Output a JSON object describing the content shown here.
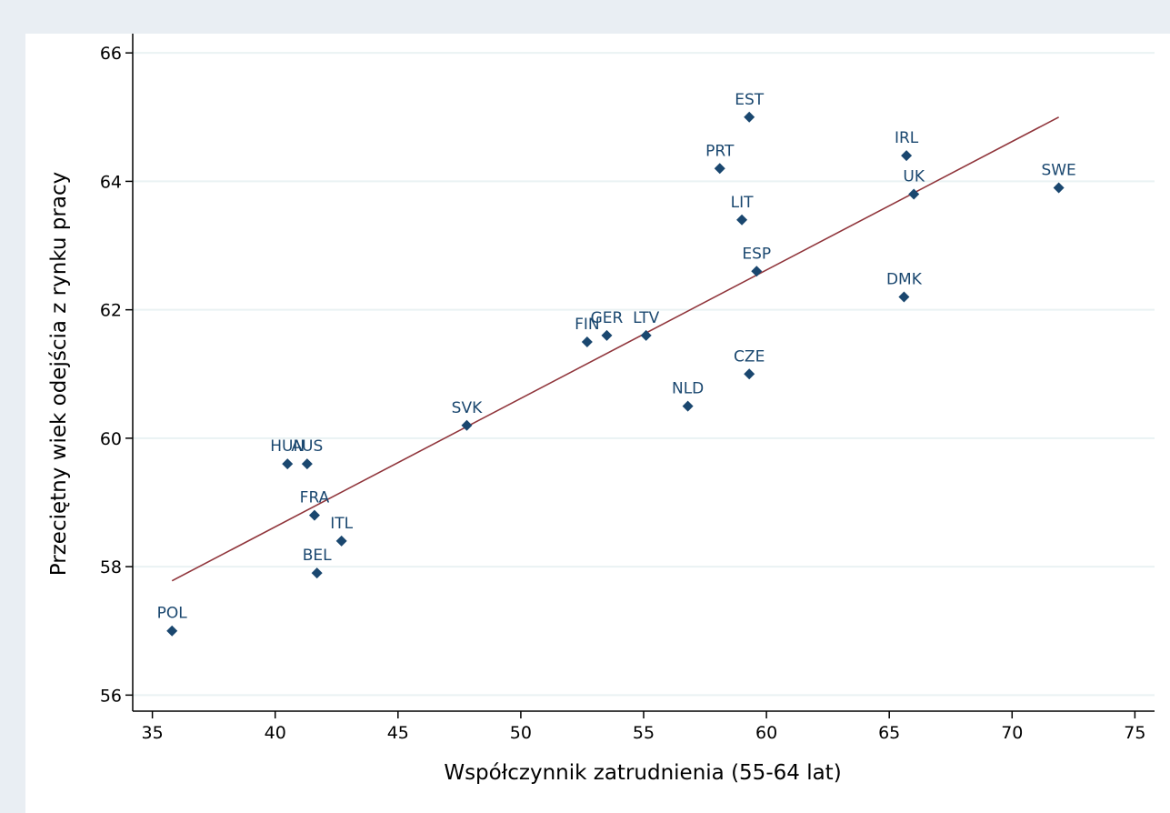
{
  "chart_data": {
    "type": "scatter",
    "title": "",
    "xlabel": "Współczynnik zatrudnienia (55-64 lat)",
    "ylabel": "Przeciętny wiek odejścia z rynku pracy",
    "xlim": [
      34.2,
      75.8
    ],
    "ylim": [
      55.75,
      66.3
    ],
    "xticks": [
      "35",
      "40",
      "45",
      "50",
      "55",
      "60",
      "65",
      "70",
      "75"
    ],
    "yticks": [
      "56",
      "58",
      "60",
      "62",
      "64",
      "66"
    ],
    "grid": "horizontal",
    "legend": "none",
    "marker_color": "#1a476f",
    "fit_color": "#90353b",
    "points": [
      {
        "label": "POL",
        "x": 35.8,
        "y": 57.0
      },
      {
        "label": "HUN",
        "x": 40.5,
        "y": 59.6
      },
      {
        "label": "AUS",
        "x": 41.3,
        "y": 59.6
      },
      {
        "label": "FRA",
        "x": 41.6,
        "y": 58.8
      },
      {
        "label": "BEL",
        "x": 41.7,
        "y": 57.9
      },
      {
        "label": "ITL",
        "x": 42.7,
        "y": 58.4
      },
      {
        "label": "SVK",
        "x": 47.8,
        "y": 60.2
      },
      {
        "label": "FIN",
        "x": 52.7,
        "y": 61.5
      },
      {
        "label": "GER",
        "x": 53.5,
        "y": 61.6
      },
      {
        "label": "LTV",
        "x": 55.1,
        "y": 61.6
      },
      {
        "label": "NLD",
        "x": 56.8,
        "y": 60.5
      },
      {
        "label": "PRT",
        "x": 58.1,
        "y": 64.2
      },
      {
        "label": "LIT",
        "x": 59.0,
        "y": 63.4
      },
      {
        "label": "EST",
        "x": 59.3,
        "y": 65.0
      },
      {
        "label": "CZE",
        "x": 59.3,
        "y": 61.0
      },
      {
        "label": "ESP",
        "x": 59.6,
        "y": 62.6
      },
      {
        "label": "DMK",
        "x": 65.6,
        "y": 62.2
      },
      {
        "label": "IRL",
        "x": 65.7,
        "y": 64.4
      },
      {
        "label": "UK",
        "x": 66.0,
        "y": 63.8
      },
      {
        "label": "SWE",
        "x": 71.9,
        "y": 63.9
      }
    ],
    "fit_line": {
      "x": [
        35.8,
        71.9
      ],
      "y": [
        57.78,
        65.0
      ]
    }
  }
}
